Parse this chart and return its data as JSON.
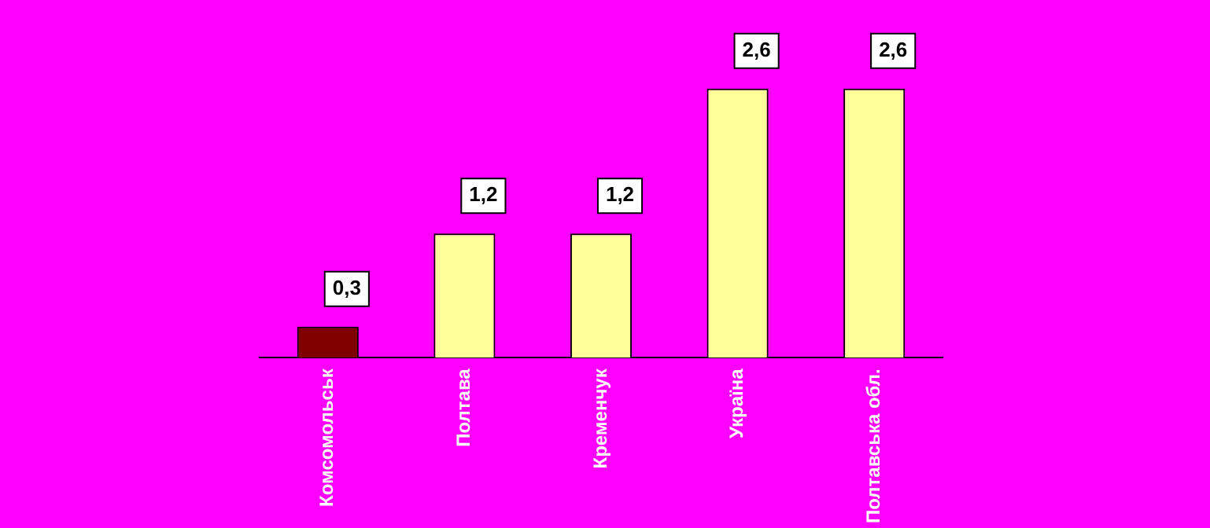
{
  "chart_data": {
    "type": "bar",
    "categories": [
      "Комсомольськ",
      "Полтава",
      "Кременчук",
      "Україна",
      "Полтавська обл."
    ],
    "values": [
      0.3,
      1.2,
      1.2,
      2.6,
      2.6
    ],
    "colors": [
      "#800000",
      "#ffff99",
      "#ffff99",
      "#ffff99",
      "#ffff99"
    ],
    "value_labels": [
      "0,3",
      "1,2",
      "1,2",
      "2,6",
      "2,6"
    ],
    "grid": false,
    "legend": false,
    "tick_labels": "x"
  }
}
